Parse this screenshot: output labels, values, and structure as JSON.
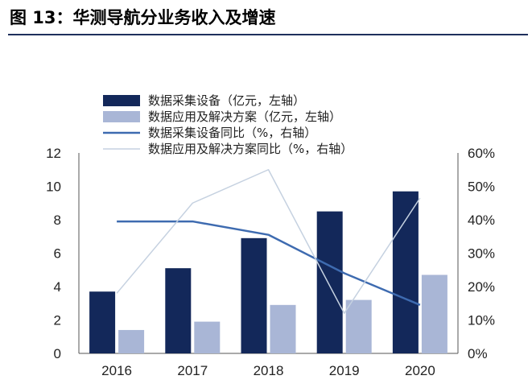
{
  "header": {
    "title": "图 13：华测导航分业务收入及增速"
  },
  "chart_data": {
    "type": "bar",
    "categories": [
      "2016",
      "2017",
      "2018",
      "2019",
      "2020"
    ],
    "series": [
      {
        "name": "数据采集设备（亿元，左轴）",
        "type": "bar",
        "axis": "left",
        "color": "#13285a",
        "values": [
          3.7,
          5.1,
          6.9,
          8.5,
          9.7
        ]
      },
      {
        "name": "数据应用及解决方案（亿元，左轴）",
        "type": "bar",
        "axis": "left",
        "color": "#a9b6d6",
        "values": [
          1.4,
          1.9,
          2.9,
          3.2,
          4.7
        ]
      },
      {
        "name": "数据采集设备同比（%，右轴）",
        "type": "line",
        "axis": "right",
        "color": "#3e6bb0",
        "values": [
          39.5,
          39.5,
          35.5,
          24.0,
          14.5
        ]
      },
      {
        "name": "数据应用及解决方案同比（%，右轴）",
        "type": "line",
        "axis": "right",
        "color": "#c5d1e0",
        "values": [
          18.0,
          45.0,
          55.0,
          12.0,
          46.5
        ]
      }
    ],
    "y_left": {
      "ticks": [
        "0",
        "2",
        "4",
        "6",
        "8",
        "10",
        "12"
      ],
      "min": 0,
      "max": 12
    },
    "y_right": {
      "ticks": [
        "0%",
        "10%",
        "20%",
        "30%",
        "40%",
        "50%",
        "60%"
      ],
      "min": 0,
      "max": 60
    },
    "grid": false,
    "legend_position": "top-center"
  }
}
